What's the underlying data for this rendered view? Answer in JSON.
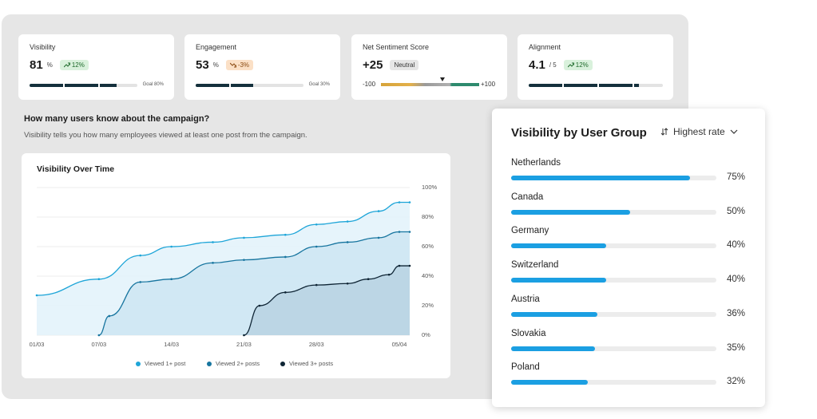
{
  "kpis": [
    {
      "label": "Visibility",
      "value": 81,
      "unit": "%",
      "change": "12%",
      "trend": "up",
      "goal": "Goal 80%"
    },
    {
      "label": "Engagement",
      "value": 53,
      "unit": "%",
      "change": "-3%",
      "trend": "down",
      "goal": "Goal 30%"
    },
    {
      "label": "Net Sentiment Score",
      "value": 25,
      "value_label": "+25",
      "status": "Neutral",
      "scale": [
        {
          "value": -100,
          "label": "-100"
        },
        {
          "value": 100,
          "label": "+100"
        }
      ]
    },
    {
      "label": "Alignment",
      "value": 4.1,
      "unit": "/ 5",
      "max": 5,
      "change": "12%",
      "trend": "up"
    }
  ],
  "section": {
    "title": "How many users know about the campaign?",
    "subtitle": "Visibility tells you how many employees viewed at least one post from the campaign."
  },
  "visibility_chart": {
    "type": "line",
    "title": "Visibility Over Time",
    "xlim": [
      0,
      36
    ],
    "xticks": [
      {
        "value": 0,
        "label": "01/03"
      },
      {
        "value": 6,
        "label": "07/03"
      },
      {
        "value": 13,
        "label": "14/03"
      },
      {
        "value": 20,
        "label": "21/03"
      },
      {
        "value": 27,
        "label": "28/03"
      },
      {
        "value": 35,
        "label": "05/04"
      }
    ],
    "ylim": [
      0,
      100
    ],
    "yticks": [
      {
        "value": 0,
        "label": "0%"
      },
      {
        "value": 20,
        "label": "20%"
      },
      {
        "value": 40,
        "label": "40%"
      },
      {
        "value": 60,
        "label": "60%"
      },
      {
        "value": 80,
        "label": "80%"
      },
      {
        "value": 100,
        "label": "100%"
      }
    ],
    "grid": true,
    "series": [
      {
        "name": "Viewed 1+ post",
        "color": "#1ea5d8",
        "fill": "#e2f2fa",
        "x": [
          0,
          6,
          10,
          13,
          17,
          20,
          24,
          27,
          30,
          33,
          35,
          36
        ],
        "values": [
          27,
          38,
          54,
          60,
          63,
          66,
          68,
          75,
          77,
          84,
          90,
          90
        ]
      },
      {
        "name": "Viewed 2+ posts",
        "color": "#17759f",
        "fill": "#cde5f2",
        "x": [
          6,
          7,
          10,
          13,
          17,
          20,
          24,
          27,
          30,
          33,
          35,
          36
        ],
        "values": [
          0,
          13,
          36,
          38,
          49,
          51,
          53,
          60,
          63,
          66,
          70,
          70
        ]
      },
      {
        "name": "Viewed 3+ posts",
        "color": "#0e2434",
        "fill": "#b9d2e2",
        "x": [
          20,
          21.5,
          24,
          27,
          30,
          32,
          34,
          35,
          36
        ],
        "values": [
          0,
          20,
          29,
          34,
          35,
          38,
          41,
          47,
          47
        ]
      }
    ]
  },
  "user_groups": {
    "title": "Visibility by User Group",
    "sort": "Highest rate",
    "color": "#1b9fe2",
    "groups": [
      {
        "name": "Netherlands",
        "value": 75,
        "label": "75%"
      },
      {
        "name": "Canada",
        "value": 50,
        "label": "50%"
      },
      {
        "name": "Germany",
        "value": 40,
        "label": "40%"
      },
      {
        "name": "Switzerland",
        "value": 40,
        "label": "40%"
      },
      {
        "name": "Austria",
        "value": 36,
        "label": "36%"
      },
      {
        "name": "Slovakia",
        "value": 35,
        "label": "35%"
      },
      {
        "name": "Poland",
        "value": 32,
        "label": "32%"
      }
    ]
  }
}
